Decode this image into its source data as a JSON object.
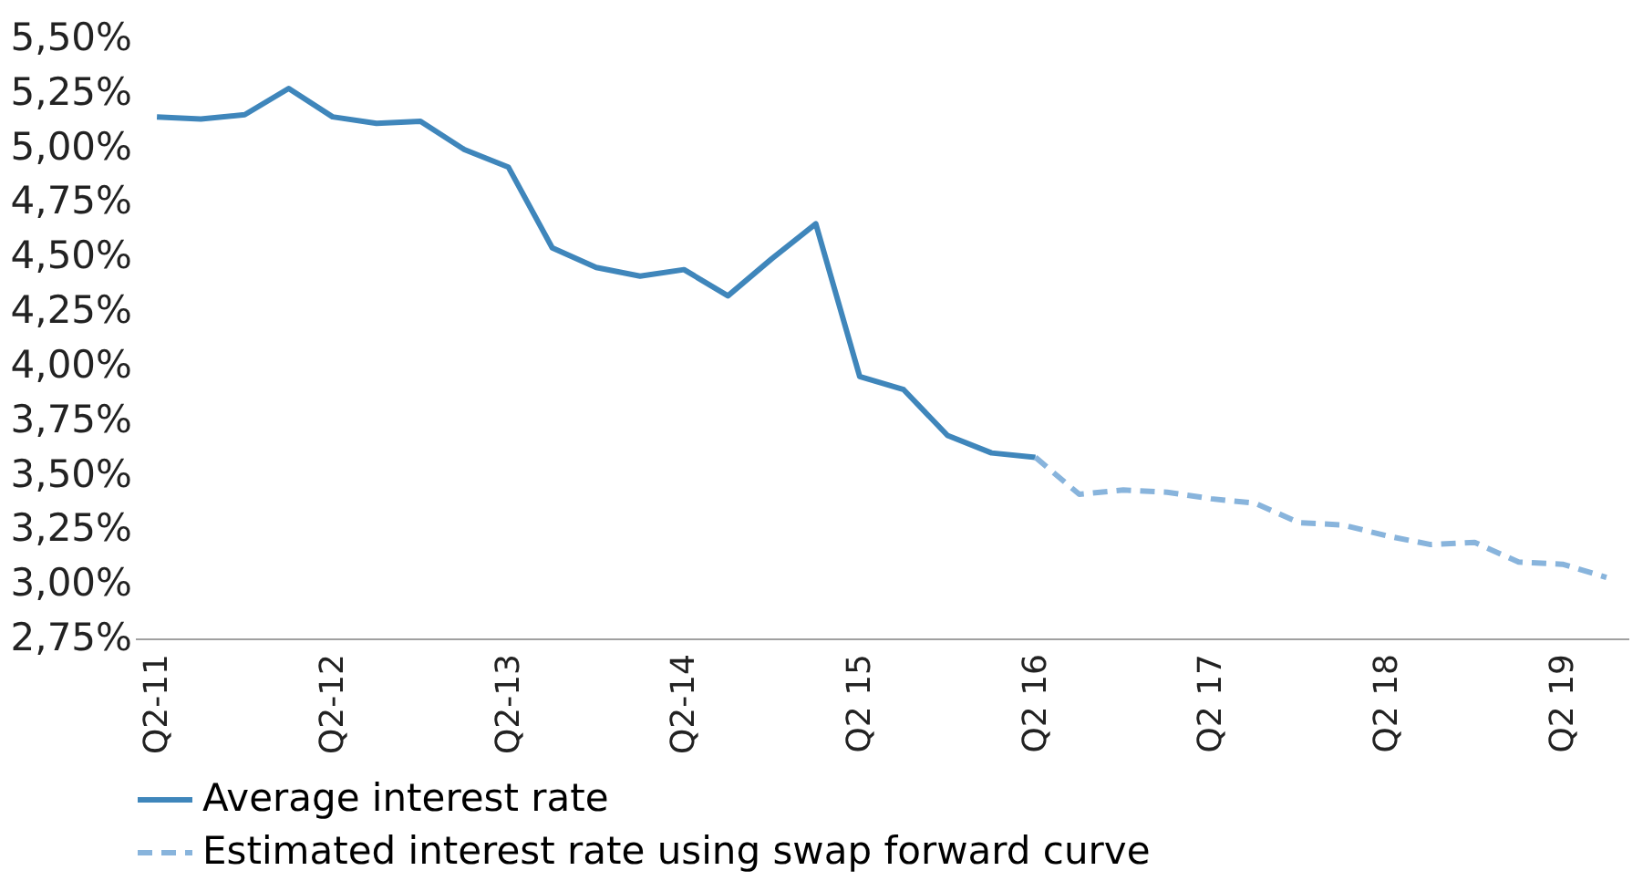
{
  "chart_data": {
    "type": "line",
    "categories": [
      "Q2-11",
      null,
      null,
      null,
      "Q2-12",
      null,
      null,
      null,
      "Q2-13",
      null,
      null,
      null,
      "Q2-14",
      null,
      null,
      null,
      "Q2 15",
      null,
      null,
      null,
      "Q2 16",
      null,
      null,
      null,
      "Q2 17",
      null,
      null,
      null,
      "Q2 18",
      null,
      null,
      null,
      "Q2 19",
      null
    ],
    "series": [
      {
        "name": "Average interest rate",
        "color": "#3f86bb",
        "line_style": "solid",
        "values": [
          5.14,
          5.13,
          5.15,
          5.27,
          5.14,
          5.11,
          5.12,
          4.99,
          4.91,
          4.54,
          4.45,
          4.41,
          4.44,
          4.32,
          4.49,
          4.65,
          3.95,
          3.89,
          3.68,
          3.6,
          3.58,
          null,
          null,
          null,
          null,
          null,
          null,
          null,
          null,
          null,
          null,
          null,
          null,
          null
        ]
      },
      {
        "name": "Estimated interest rate using swap forward curve",
        "color": "#88b4dc",
        "line_style": "dashed",
        "values": [
          null,
          null,
          null,
          null,
          null,
          null,
          null,
          null,
          null,
          null,
          null,
          null,
          null,
          null,
          null,
          null,
          null,
          null,
          null,
          null,
          3.58,
          3.41,
          3.43,
          3.42,
          3.39,
          3.37,
          3.28,
          3.27,
          3.22,
          3.18,
          3.19,
          3.1,
          3.09,
          3.03
        ]
      }
    ],
    "ylim": [
      2.75,
      5.5
    ],
    "yticks": [
      {
        "value": 2.75,
        "label": "2,75%"
      },
      {
        "value": 3.0,
        "label": "3,00%"
      },
      {
        "value": 3.25,
        "label": "3,25%"
      },
      {
        "value": 3.5,
        "label": "3,50%"
      },
      {
        "value": 3.75,
        "label": "3,75%"
      },
      {
        "value": 4.0,
        "label": "4,00%"
      },
      {
        "value": 4.25,
        "label": "4,25%"
      },
      {
        "value": 4.5,
        "label": "4,50%"
      },
      {
        "value": 4.75,
        "label": "4,75%"
      },
      {
        "value": 5.0,
        "label": "5,00%"
      },
      {
        "value": 5.25,
        "label": "5,25%"
      },
      {
        "value": 5.5,
        "label": "5,50%"
      }
    ],
    "grid": false,
    "legend": "bottom left",
    "marker": "none"
  }
}
